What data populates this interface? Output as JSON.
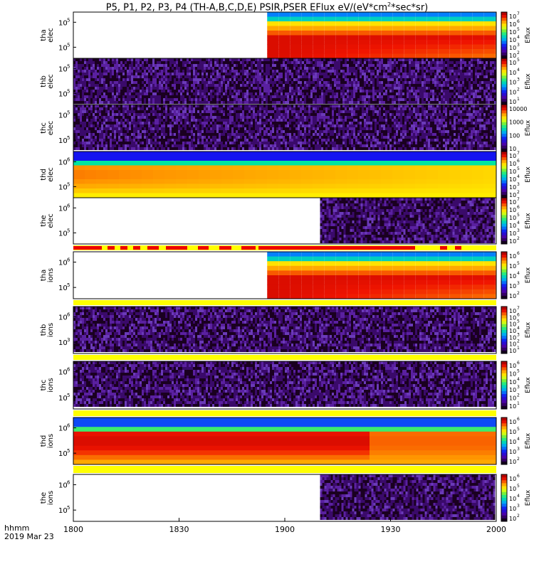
{
  "chart_data": {
    "type": "heatmap",
    "title_text": "P5, P1, P2, P3, P4 (TH-A,B,C,D,E) PSIR,PSER EFlux eV/(eV*cm",
    "title_sup": "2",
    "title_tail": "*sec*sr)",
    "x_axis": {
      "range": [
        "1800",
        "2000"
      ],
      "tick_labels": [
        "1800",
        "1830",
        "1900",
        "1930",
        "2000"
      ],
      "time_label": "hhmm",
      "date_label": "2019 Mar 23"
    },
    "colorbar_label": "Eflux",
    "panels": [
      {
        "probe": "tha",
        "species": "elec",
        "yticks": [
          "10",
          "10"
        ],
        "ytick_exp": [
          "5",
          "5"
        ],
        "cbar_ticks": [
          "10",
          "10",
          "10",
          "10",
          "10",
          "10"
        ],
        "cbar_exp": [
          "7",
          "6",
          "5",
          "4",
          "3",
          "2"
        ],
        "data_start": "1855",
        "pattern": "band_cool"
      },
      {
        "probe": "thb",
        "species": "elec",
        "yticks": [
          "10",
          "10"
        ],
        "ytick_exp": [
          "5",
          "5"
        ],
        "cbar_ticks": [
          "10",
          "10",
          "10",
          "10",
          "10"
        ],
        "cbar_exp": [
          "5",
          "4",
          "3",
          "2",
          "1"
        ],
        "data_start": "1800",
        "pattern": "noise"
      },
      {
        "probe": "thc",
        "species": "elec",
        "yticks": [
          "10",
          "10"
        ],
        "ytick_exp": [
          "5",
          "5"
        ],
        "cbar_ticks": [
          "10000",
          "1000",
          "100",
          "10"
        ],
        "cbar_exp": [
          "",
          "",
          "",
          ""
        ],
        "data_start": "1800",
        "pattern": "noise"
      },
      {
        "probe": "thd",
        "species": "elec",
        "yticks": [
          "10",
          "10"
        ],
        "ytick_exp": [
          "6",
          "5"
        ],
        "cbar_ticks": [
          "10",
          "10",
          "10",
          "10",
          "10",
          "10"
        ],
        "cbar_exp": [
          "7",
          "6",
          "5",
          "4",
          "3",
          "2"
        ],
        "data_start": "1800",
        "pattern": "band_warm"
      },
      {
        "probe": "the",
        "species": "elec",
        "yticks": [
          "10",
          "10"
        ],
        "ytick_exp": [
          "6",
          "5"
        ],
        "cbar_ticks": [
          "10",
          "10",
          "10",
          "10",
          "10",
          "10"
        ],
        "cbar_exp": [
          "7",
          "6",
          "5",
          "4",
          "3",
          "2"
        ],
        "data_start": "1910",
        "pattern": "noise"
      },
      {
        "probe": "tha",
        "species": "ions",
        "yticks": [
          "10",
          "10"
        ],
        "ytick_exp": [
          "6",
          "5"
        ],
        "cbar_ticks": [
          "10",
          "10",
          "10",
          "10",
          "10"
        ],
        "cbar_exp": [
          "6",
          "5",
          "4",
          "3",
          "2"
        ],
        "data_start": "1855",
        "pattern": "band_cool"
      },
      {
        "probe": "thb",
        "species": "ions",
        "yticks": [
          "10",
          "10"
        ],
        "ytick_exp": [
          "6",
          "3"
        ],
        "cbar_ticks": [
          "10",
          "10",
          "10",
          "10",
          "10",
          "10",
          "10"
        ],
        "cbar_exp": [
          "7",
          "6",
          "5",
          "4",
          "3",
          "2",
          "1"
        ],
        "data_start": "1800",
        "pattern": "noise"
      },
      {
        "probe": "thc",
        "species": "ions",
        "yticks": [
          "10",
          "10"
        ],
        "ytick_exp": [
          "6",
          "5"
        ],
        "cbar_ticks": [
          "10",
          "10",
          "10",
          "10",
          "10",
          "10"
        ],
        "cbar_exp": [
          "6",
          "5",
          "4",
          "3",
          "2",
          "1"
        ],
        "data_start": "1800",
        "pattern": "noise"
      },
      {
        "probe": "thd",
        "species": "ions",
        "yticks": [
          "10",
          "10"
        ],
        "ytick_exp": [
          "6",
          "5"
        ],
        "cbar_ticks": [
          "10",
          "10",
          "10",
          "10",
          "10"
        ],
        "cbar_exp": [
          "6",
          "5",
          "4",
          "3",
          "2"
        ],
        "data_start": "1800",
        "pattern": "band_hot"
      },
      {
        "probe": "the",
        "species": "ions",
        "yticks": [
          "10",
          "10"
        ],
        "ytick_exp": [
          "6",
          "5"
        ],
        "cbar_ticks": [
          "10",
          "10",
          "10",
          "10",
          "10"
        ],
        "cbar_exp": [
          "6",
          "5",
          "4",
          "3",
          "2"
        ],
        "data_start": "1910",
        "pattern": "noise"
      }
    ]
  }
}
